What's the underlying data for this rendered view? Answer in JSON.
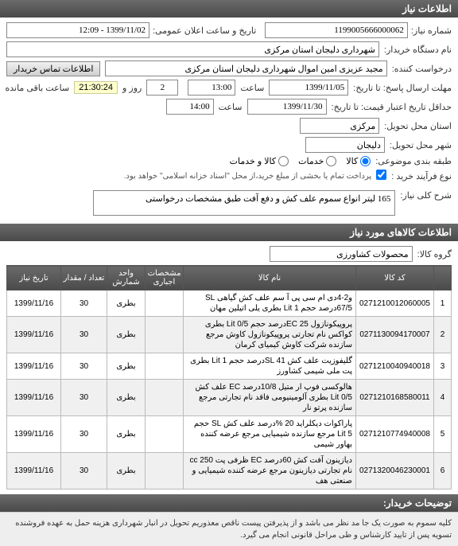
{
  "headers": {
    "info": "اطلاعات نیاز",
    "items": "اطلاعات کالاهای مورد نیاز",
    "buyer_notes": "توضیحات خریدار:"
  },
  "labels": {
    "req_no": "شماره نیاز:",
    "ann_time": "تاریخ و ساعت اعلان عمومی:",
    "buyer_org": "نام دستگاه خریدار:",
    "requester": "درخواست کننده:",
    "contact_btn": "اطلاعات تماس خریدار",
    "deadline": "مهلت ارسال پاسخ: تا تاریخ:",
    "hour": "ساعت",
    "days_and": "روز و",
    "hours_left": "ساعت باقی مانده",
    "validity": "حداقل تاریخ اعتبار قیمت: تا تاریخ:",
    "province": "استان محل تحویل:",
    "city": "شهر محل تحویل:",
    "budget_cat": "طبقه بندی موضوعی:",
    "goods": "کالا",
    "services": "خدمات",
    "both": "کالا و خدمات",
    "process": "نوع فرآیند خرید :",
    "process_note": "پرداخت تمام یا بخشی از مبلغ خرید،از محل \"اسناد خزانه اسلامی\" خواهد بود.",
    "summary": "شرح کلی نیاز:",
    "group": "گروه کالا:"
  },
  "values": {
    "req_no": "1199005666000062",
    "ann_time": "1399/11/02 - 12:09",
    "buyer_org": "شهرداری دلیجان استان مرکزی",
    "requester": "مجید عزیزی امین اموال شهرداری دلیجان استان مرکزی",
    "deadline_date": "1399/11/05",
    "deadline_hour": "13:00",
    "days_left": "2",
    "timer": "21:30:24",
    "validity_date": "1399/11/30",
    "validity_hour": "14:00",
    "province": "مرکزی",
    "city": "دلیجان",
    "summary": "165 لیتر انواع سموم علف کش و دفع آفت طبق مشخصات درخواستی",
    "group": "محصولات کشاورزی"
  },
  "table": {
    "headers": {
      "num": "",
      "code": "کد کالا",
      "name": "نام کالا",
      "specs": "مشخصات اجباری",
      "unit": "واحد شمارش",
      "qty": "تعداد / مقدار",
      "date": "تاریخ نیاز"
    },
    "rows": [
      {
        "n": "1",
        "code": "0271210012060005",
        "name": "و2-4دی ام سی پی آ سم علف کش گیاهی SL 67/5درصد حجم Lit 1 بطری یلی اتیلین مهان",
        "unit": "بطری",
        "qty": "30",
        "date": "1399/11/16"
      },
      {
        "n": "2",
        "code": "0271130094170007",
        "name": "پروپیکونازول EC 25درصد حجم Lit 0/5 بطری کواکس نام تجارتی پروپیکونازول کاوش مرجع سازنده شرکت کاوش کیمیای کرمان",
        "unit": "بطری",
        "qty": "30",
        "date": "1399/11/16"
      },
      {
        "n": "3",
        "code": "0271210040940018",
        "name": "گلیفوزیت علف کش SL 41درصد حجم Lit 1 بطری پت ملی شیمی کشاورز",
        "unit": "بطری",
        "qty": "30",
        "date": "1399/11/16"
      },
      {
        "n": "4",
        "code": "0271210168580011",
        "name": "هالوکسی فوپ ار متیل 10/8درصد EC علف کش Lit 0/5 بطری آلومینیومی فاقد نام تجارتی مرجع سازنده پرتو نار",
        "unit": "بطری",
        "qty": "30",
        "date": "1399/11/16"
      },
      {
        "n": "5",
        "code": "0271210774940008",
        "name": "پاراکوات دیکلراید 20 %درصد علف کش SL حجم Lit 5 مرجع سازنده شیمیایی مرجع عرضه کننده بهاور شیمی",
        "unit": "بطری",
        "qty": "30",
        "date": "1399/11/16"
      },
      {
        "n": "6",
        "code": "0271320046230001",
        "name": "دیازینون آفت کش 60درصد EC ظرفی پت cc 250 نام تجارتی دیازینون مرجع عرضه کننده شیمیایی و صنعتی هف",
        "unit": "بطری",
        "qty": "30",
        "date": "1399/11/16"
      }
    ]
  },
  "footer": "کلیه سموم به صورت یک جا مد نظر می باشد و از پذیرفتن پیست ناقص معذوریم تحویل در انبار شهرداری هزینه حمل به عهده فروشنده تسویه پس از تایید کارشناس و طی مراحل قانونی انجام می گیرد."
}
